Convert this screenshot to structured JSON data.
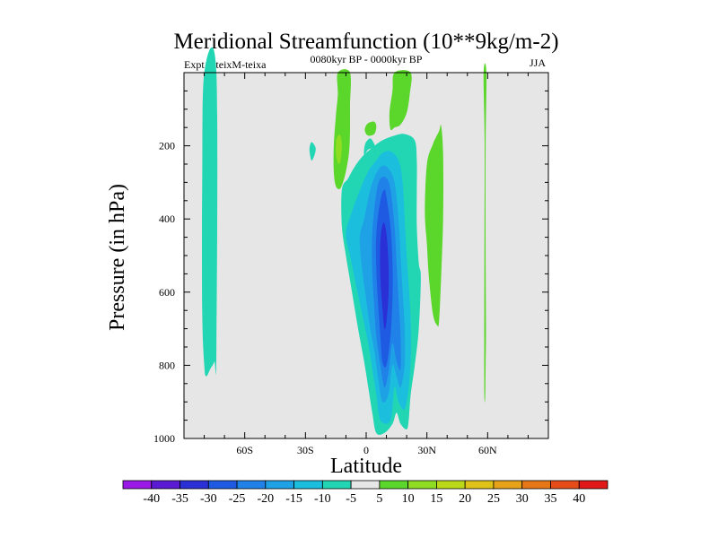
{
  "chart_data": {
    "type": "heatmap",
    "title": "Meridional Streamfunction (10**9kg/m-2)",
    "subtitle_left": "Expt = teixM-teixa",
    "subtitle_center": "0080kyr BP - 0000kyr BP",
    "subtitle_right": "JJA",
    "xlabel": "Latitude",
    "ylabel": "Pressure (in hPa)",
    "xlim": [
      -90,
      90
    ],
    "ylim": [
      1000,
      0
    ],
    "x_ticks": [
      {
        "value": -60,
        "label": "60S"
      },
      {
        "value": -30,
        "label": "30S"
      },
      {
        "value": 0,
        "label": "0"
      },
      {
        "value": 30,
        "label": "30N"
      },
      {
        "value": 60,
        "label": "60N"
      }
    ],
    "y_ticks": [
      {
        "value": 200,
        "label": "200"
      },
      {
        "value": 400,
        "label": "400"
      },
      {
        "value": 600,
        "label": "600"
      },
      {
        "value": 800,
        "label": "800"
      },
      {
        "value": 1000,
        "label": "1000"
      }
    ],
    "background_color": "#e6e6e6",
    "colorbar": {
      "labels": [
        "-40",
        "-35",
        "-30",
        "-25",
        "-20",
        "-15",
        "-10",
        "-5",
        "5",
        "10",
        "15",
        "20",
        "25",
        "30",
        "35",
        "40"
      ],
      "colors": [
        "#9a19e6",
        "#5a19d2",
        "#2b2fd6",
        "#1e5be2",
        "#2081e8",
        "#1fa1e6",
        "#1cbedd",
        "#22d6b4",
        "#e6e6e6",
        "#5bd62a",
        "#8edd23",
        "#bbd819",
        "#dfc319",
        "#e6a219",
        "#e67719",
        "#e64c19",
        "#e01818"
      ]
    },
    "contours": [
      {
        "level": -5,
        "color": "#22d6b4",
        "points": [
          [
            -80,
            0
          ],
          [
            -74,
            0
          ],
          [
            -74,
            760
          ],
          [
            -75,
            790
          ],
          [
            -77,
            810
          ],
          [
            -79,
            830
          ],
          [
            -80,
            800
          ],
          [
            -81,
            650
          ],
          [
            -81,
            300
          ]
        ]
      },
      {
        "level": -5,
        "color": "#22d6b4",
        "points": [
          [
            -27,
            190
          ],
          [
            -25,
            205
          ],
          [
            -25.5,
            225
          ],
          [
            -27,
            240
          ],
          [
            -28,
            210
          ]
        ]
      },
      {
        "level": -5,
        "color": "#22d6b4",
        "points": [
          [
            -12,
            320
          ],
          [
            -9,
            290
          ],
          [
            -6,
            260
          ],
          [
            -2,
            230
          ],
          [
            3,
            205
          ],
          [
            8,
            185
          ],
          [
            14,
            172
          ],
          [
            19,
            168
          ],
          [
            24,
            185
          ],
          [
            25,
            240
          ],
          [
            25,
            320
          ],
          [
            25,
            420
          ],
          [
            26,
            520
          ],
          [
            27,
            560
          ],
          [
            26,
            700
          ],
          [
            24,
            800
          ],
          [
            22,
            880
          ],
          [
            21,
            950
          ],
          [
            20,
            975
          ],
          [
            17,
            960
          ],
          [
            15,
            930
          ],
          [
            13,
            960
          ],
          [
            9,
            985
          ],
          [
            5,
            985
          ],
          [
            3,
            930
          ],
          [
            1,
            860
          ],
          [
            -1,
            790
          ],
          [
            -4,
            700
          ],
          [
            -7,
            600
          ],
          [
            -10,
            500
          ],
          [
            -12,
            420
          ]
        ]
      },
      {
        "level": -5,
        "color": "#22d6b4",
        "points": [
          [
            -1,
            225
          ],
          [
            -0.5,
            195
          ],
          [
            2,
            180
          ],
          [
            4,
            195
          ],
          [
            4,
            205
          ],
          [
            1,
            210
          ]
        ]
      },
      {
        "level": -10,
        "color": "#1cbedd",
        "points": [
          [
            -10,
            440
          ],
          [
            -7,
            380
          ],
          [
            -3,
            320
          ],
          [
            1,
            270
          ],
          [
            5,
            240
          ],
          [
            8,
            220
          ],
          [
            12,
            215
          ],
          [
            16,
            240
          ],
          [
            18,
            300
          ],
          [
            19,
            400
          ],
          [
            20,
            500
          ],
          [
            21,
            580
          ],
          [
            22,
            680
          ],
          [
            22,
            780
          ],
          [
            21,
            860
          ],
          [
            19,
            920
          ],
          [
            16,
            900
          ],
          [
            14,
            860
          ],
          [
            12,
            950
          ],
          [
            7,
            950
          ],
          [
            5,
            880
          ],
          [
            3,
            810
          ],
          [
            1,
            740
          ],
          [
            -2,
            660
          ],
          [
            -5,
            580
          ],
          [
            -8,
            500
          ]
        ]
      },
      {
        "level": -15,
        "color": "#1fa1e6",
        "points": [
          [
            -3,
            440
          ],
          [
            -1,
            400
          ],
          [
            2,
            320
          ],
          [
            5,
            275
          ],
          [
            8,
            255
          ],
          [
            11,
            262
          ],
          [
            14,
            300
          ],
          [
            16,
            400
          ],
          [
            17,
            500
          ],
          [
            18,
            600
          ],
          [
            19,
            700
          ],
          [
            19,
            800
          ],
          [
            17,
            860
          ],
          [
            15,
            830
          ],
          [
            13,
            800
          ],
          [
            11,
            880
          ],
          [
            8,
            900
          ],
          [
            6,
            840
          ],
          [
            4,
            760
          ],
          [
            2,
            700
          ],
          [
            0,
            620
          ],
          [
            -2,
            540
          ],
          [
            -3,
            480
          ]
        ]
      },
      {
        "level": -20,
        "color": "#2081e8",
        "points": [
          [
            3,
            440
          ],
          [
            5,
            330
          ],
          [
            7,
            290
          ],
          [
            10,
            288
          ],
          [
            12,
            320
          ],
          [
            14,
            420
          ],
          [
            15,
            520
          ],
          [
            16,
            620
          ],
          [
            17,
            720
          ],
          [
            17,
            810
          ],
          [
            15,
            790
          ],
          [
            13,
            740
          ],
          [
            11,
            820
          ],
          [
            9,
            860
          ],
          [
            7,
            800
          ],
          [
            5,
            720
          ],
          [
            4,
            640
          ],
          [
            3,
            540
          ]
        ]
      },
      {
        "level": -25,
        "color": "#1e5be2",
        "points": [
          [
            5,
            440
          ],
          [
            7,
            350
          ],
          [
            9,
            320
          ],
          [
            10,
            340
          ],
          [
            12,
            420
          ],
          [
            13,
            520
          ],
          [
            13,
            620
          ],
          [
            12,
            720
          ],
          [
            10,
            800
          ],
          [
            8,
            790
          ],
          [
            7,
            720
          ],
          [
            6,
            640
          ],
          [
            5,
            540
          ]
        ]
      },
      {
        "level": -30,
        "color": "#2b2fd6",
        "points": [
          [
            7,
            460
          ],
          [
            8.5,
            410
          ],
          [
            10,
            440
          ],
          [
            11,
            520
          ],
          [
            11,
            610
          ],
          [
            10,
            680
          ],
          [
            9,
            700
          ],
          [
            8,
            640
          ],
          [
            7,
            560
          ]
        ]
      },
      {
        "level": 5,
        "color": "#5bd62a",
        "points": [
          [
            -14,
            0
          ],
          [
            -8,
            0
          ],
          [
            -8,
            90
          ],
          [
            -8,
            160
          ],
          [
            -8.5,
            220
          ],
          [
            -10,
            270
          ],
          [
            -11.5,
            300
          ],
          [
            -13,
            318
          ],
          [
            -15,
            310
          ],
          [
            -16,
            270
          ],
          [
            -16,
            200
          ],
          [
            -15,
            120
          ],
          [
            -14,
            60
          ]
        ]
      },
      {
        "level": 5,
        "color": "#5bd62a",
        "points": [
          [
            -0.5,
            150
          ],
          [
            1,
            138
          ],
          [
            4,
            134
          ],
          [
            5,
            148
          ],
          [
            4,
            168
          ],
          [
            1,
            172
          ],
          [
            -0.5,
            162
          ]
        ]
      },
      {
        "level": 5,
        "color": "#5bd62a",
        "points": [
          [
            14,
            0
          ],
          [
            22,
            0
          ],
          [
            21.5,
            60
          ],
          [
            20,
            110
          ],
          [
            17,
            142
          ],
          [
            14,
            150
          ],
          [
            12,
            155
          ],
          [
            11.5,
            110
          ],
          [
            13,
            50
          ]
        ]
      },
      {
        "level": 5,
        "color": "#5bd62a",
        "points": [
          [
            29,
            380
          ],
          [
            30,
            250
          ],
          [
            33,
            195
          ],
          [
            36,
            160
          ],
          [
            37,
            145
          ],
          [
            38,
            220
          ],
          [
            38,
            400
          ],
          [
            37,
            560
          ],
          [
            36,
            680
          ],
          [
            35,
            690
          ],
          [
            33,
            660
          ],
          [
            31,
            560
          ],
          [
            30,
            470
          ]
        ]
      },
      {
        "level": 5,
        "color": "#5bd62a",
        "points": [
          [
            58,
            0
          ],
          [
            59.4,
            0
          ],
          [
            59,
            200
          ],
          [
            59,
            500
          ],
          [
            59.2,
            700
          ],
          [
            59,
            800
          ],
          [
            58.8,
            890
          ],
          [
            58.4,
            890
          ],
          [
            58.3,
            800
          ],
          [
            58.4,
            500
          ],
          [
            58.5,
            200
          ]
        ]
      },
      {
        "level": 10,
        "color": "#8edd23",
        "points": [
          [
            -14.6,
            180
          ],
          [
            -13,
            170
          ],
          [
            -12,
            195
          ],
          [
            -12.5,
            235
          ],
          [
            -13.5,
            250
          ],
          [
            -14.8,
            230
          ],
          [
            -15,
            200
          ]
        ]
      }
    ]
  }
}
